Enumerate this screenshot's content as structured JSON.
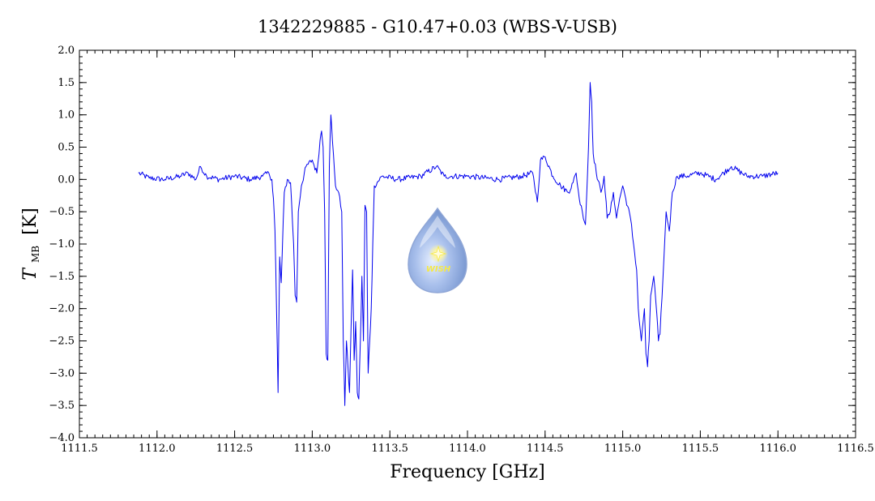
{
  "chart_data": {
    "type": "line",
    "title": "1342229885 - G10.47+0.03 (WBS-V-USB)",
    "xlabel": "Frequency [GHz]",
    "ylabel_main": "T",
    "ylabel_sub": "MB",
    "ylabel_unit": "[K]",
    "xlim": [
      1111.5,
      1116.5
    ],
    "ylim": [
      -4.0,
      2.0
    ],
    "xticks": [
      1111.5,
      1112.0,
      1112.5,
      1113.0,
      1113.5,
      1114.0,
      1114.5,
      1115.0,
      1115.5,
      1116.0,
      1116.5
    ],
    "xtick_labels": [
      "1111.5",
      "1112.0",
      "1112.5",
      "1113.0",
      "1113.5",
      "1114.0",
      "1114.5",
      "1115.0",
      "1115.5",
      "1116.0",
      "1116.5"
    ],
    "yticks": [
      2.0,
      1.5,
      1.0,
      0.5,
      0.0,
      -0.5,
      -1.0,
      -1.5,
      -2.0,
      -2.5,
      -3.0,
      -3.5,
      -4.0
    ],
    "ytick_labels": [
      "2.0",
      "1.5",
      "1.0",
      "0.5",
      "0.0",
      "−0.5",
      "−1.0",
      "−1.5",
      "−2.0",
      "−2.5",
      "−3.0",
      "−3.5",
      "−4.0"
    ],
    "grid": false,
    "series": [
      {
        "color": "#0000ee",
        "x": [
          1111.88,
          1111.95,
          1112.05,
          1112.15,
          1112.2,
          1112.25,
          1112.28,
          1112.32,
          1112.4,
          1112.5,
          1112.6,
          1112.68,
          1112.72,
          1112.74,
          1112.75,
          1112.76,
          1112.77,
          1112.78,
          1112.79,
          1112.8,
          1112.82,
          1112.84,
          1112.86,
          1112.88,
          1112.89,
          1112.9,
          1112.91,
          1112.93,
          1112.96,
          1113.0,
          1113.03,
          1113.05,
          1113.06,
          1113.07,
          1113.08,
          1113.09,
          1113.1,
          1113.11,
          1113.12,
          1113.13,
          1113.15,
          1113.17,
          1113.19,
          1113.2,
          1113.21,
          1113.22,
          1113.23,
          1113.24,
          1113.25,
          1113.26,
          1113.27,
          1113.28,
          1113.29,
          1113.3,
          1113.31,
          1113.32,
          1113.33,
          1113.34,
          1113.35,
          1113.36,
          1113.37,
          1113.38,
          1113.39,
          1113.4,
          1113.45,
          1113.55,
          1113.7,
          1113.8,
          1113.85,
          1114.0,
          1114.2,
          1114.35,
          1114.42,
          1114.45,
          1114.47,
          1114.5,
          1114.55,
          1114.6,
          1114.65,
          1114.68,
          1114.7,
          1114.72,
          1114.74,
          1114.76,
          1114.78,
          1114.79,
          1114.8,
          1114.81,
          1114.83,
          1114.86,
          1114.88,
          1114.9,
          1114.92,
          1114.94,
          1114.96,
          1114.98,
          1115.0,
          1115.02,
          1115.05,
          1115.07,
          1115.09,
          1115.1,
          1115.12,
          1115.14,
          1115.15,
          1115.16,
          1115.17,
          1115.18,
          1115.2,
          1115.22,
          1115.23,
          1115.24,
          1115.26,
          1115.28,
          1115.3,
          1115.32,
          1115.35,
          1115.4,
          1115.5,
          1115.6,
          1115.7,
          1115.8,
          1115.9,
          1116.0
        ],
        "y": [
          0.1,
          0.02,
          0.0,
          0.05,
          0.1,
          0.0,
          0.2,
          0.05,
          0.0,
          0.05,
          0.0,
          0.05,
          0.1,
          0.0,
          -0.3,
          -0.8,
          -2.0,
          -3.3,
          -1.2,
          -1.6,
          -0.2,
          0.0,
          -0.05,
          -1.0,
          -1.8,
          -1.9,
          -0.5,
          -0.1,
          0.2,
          0.3,
          0.1,
          0.6,
          0.75,
          0.5,
          -0.5,
          -2.7,
          -2.8,
          0.2,
          1.0,
          0.6,
          -0.1,
          -0.2,
          -0.5,
          -2.5,
          -3.5,
          -2.5,
          -2.9,
          -3.3,
          -2.3,
          -1.4,
          -2.8,
          -2.2,
          -3.3,
          -3.4,
          -2.5,
          -1.5,
          -2.5,
          -0.4,
          -0.5,
          -3.0,
          -2.5,
          -2.0,
          -1.0,
          -0.1,
          0.05,
          0.0,
          0.05,
          0.2,
          0.05,
          0.05,
          0.0,
          0.05,
          0.1,
          -0.35,
          0.3,
          0.35,
          0.05,
          -0.1,
          -0.2,
          -0.05,
          0.1,
          -0.3,
          -0.5,
          -0.7,
          0.5,
          1.5,
          1.2,
          0.4,
          0.1,
          -0.2,
          0.05,
          -0.6,
          -0.5,
          -0.2,
          -0.6,
          -0.3,
          -0.1,
          -0.3,
          -0.6,
          -1.0,
          -1.4,
          -2.0,
          -2.5,
          -2.0,
          -2.7,
          -2.9,
          -2.5,
          -1.8,
          -1.5,
          -2.1,
          -2.5,
          -2.4,
          -1.5,
          -0.5,
          -0.8,
          -0.2,
          0.05,
          0.05,
          0.1,
          0.0,
          0.2,
          0.05,
          0.05,
          0.1
        ]
      }
    ],
    "logo": {
      "text": "WISH"
    }
  }
}
